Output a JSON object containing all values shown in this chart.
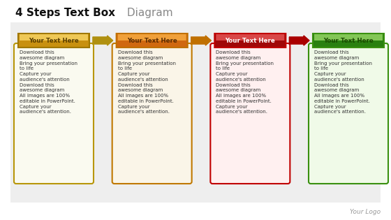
{
  "title_bold": "4 Steps Text Box",
  "title_regular": " Diagram",
  "bg_color": "#e8e8e8",
  "slide_bg": "#f0f0f0",
  "steps": [
    {
      "label": "Your Text Here",
      "label_color": "#5a3e00",
      "pill_grad_top": "#f5d060",
      "pill_grad_bot": "#c89010",
      "pill_border": "#a07800",
      "box_border": "#b8960a",
      "box_bg": "#fafaf0",
      "arrow_color": "#b09010"
    },
    {
      "label": "Your Text Here",
      "label_color": "#5a2a00",
      "pill_grad_top": "#f5a840",
      "pill_grad_bot": "#d06810",
      "pill_border": "#c07000",
      "box_border": "#c07800",
      "box_bg": "#faf5e8",
      "arrow_color": "#c07000"
    },
    {
      "label": "Your Text Here",
      "label_color": "#ffffff",
      "pill_grad_top": "#e05050",
      "pill_grad_bot": "#a00808",
      "pill_border": "#c00000",
      "box_border": "#c00000",
      "box_bg": "#fff0f0",
      "arrow_color": "#aa0000"
    },
    {
      "label": "Your Text Here",
      "label_color": "#1a4a00",
      "pill_grad_top": "#90d060",
      "pill_grad_bot": "#2a8010",
      "pill_border": "#3a9010",
      "box_border": "#3a9010",
      "box_bg": "#f0fae8",
      "arrow_color": null
    }
  ],
  "body_text": "Download this\nawesome diagram\nBring your presentation\nto life\nCapture your\naudience's attention\nDownload this\nawesome diagram\nAll images are 100%\neditable in PowerPoint.\nCapture your\naudience's attention.",
  "body_fontsize": 5.0,
  "logo_text": "Your Logo",
  "logo_color": "#999999"
}
